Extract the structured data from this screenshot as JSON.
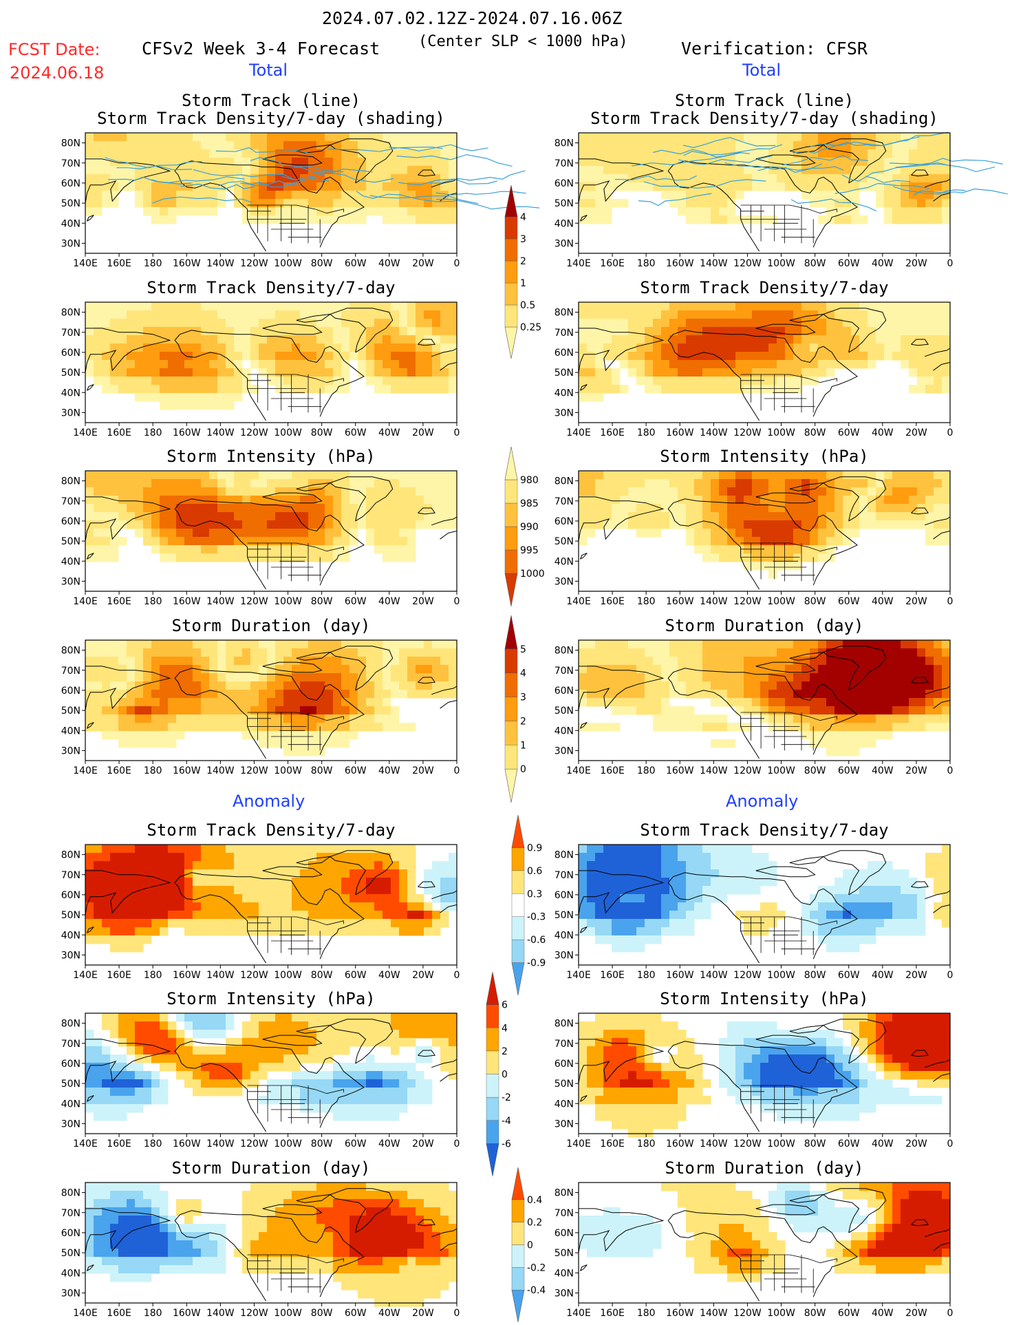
{
  "header": {
    "date_range": "2024.07.02.12Z-2024.07.16.06Z",
    "fcst_label": "FCST Date:",
    "fcst_date": "2024.06.18",
    "forecast_title": "CFSv2 Week 3-4 Forecast",
    "subtitle": "(Center SLP < 1000 hPa)",
    "verification": "Verification: CFSR"
  },
  "section_labels": {
    "total_left": "Total",
    "total_right": "Total",
    "anomaly_left": "Anomaly",
    "anomaly_right": "Anomaly"
  },
  "panels": {
    "track_line": {
      "line1": "Storm Track (line)",
      "line2": "Storm Track Density/7-day (shading)"
    },
    "density": "Storm Track Density/7-day",
    "intensity": "Storm Intensity (hPa)",
    "duration": "Storm Duration (day)"
  },
  "axes": {
    "lat_ticks": [
      "80N",
      "70N",
      "60N",
      "50N",
      "40N",
      "30N"
    ],
    "lon_ticks": [
      "140E",
      "160E",
      "180",
      "160W",
      "140W",
      "120W",
      "100W",
      "80W",
      "60W",
      "40W",
      "20W",
      "0"
    ]
  },
  "colorbars": {
    "density_total": [
      "0.25",
      "0.5",
      "1",
      "2",
      "3",
      "4"
    ],
    "intensity_total": [
      "1000",
      "995",
      "990",
      "985",
      "980"
    ],
    "duration_total": [
      "0",
      "1",
      "2",
      "3",
      "4",
      "5"
    ],
    "density_anom": [
      "-0.9",
      "-0.6",
      "-0.3",
      "0.3",
      "0.6",
      "0.9"
    ],
    "intensity_anom": [
      "-6",
      "-4",
      "-2",
      "0",
      "2",
      "4",
      "6"
    ],
    "duration_anom": [
      "-0.4",
      "-0.2",
      "0",
      "0.2",
      "0.4"
    ]
  },
  "colors": {
    "seq": [
      "#fff5a8",
      "#ffe57a",
      "#ffc23e",
      "#ff9c0f",
      "#f06d00",
      "#d93a00",
      "#a30000"
    ],
    "div_neg": [
      "#cdf3fa",
      "#96d8f5",
      "#4aa3ed",
      "#1f62d8"
    ],
    "div_pos": [
      "#ffe57a",
      "#ffa500",
      "#ff4b00",
      "#d61c00"
    ],
    "track_line": "#3aa0d8",
    "title_red": "#ff2a2a",
    "label_blue": "#1f3fff"
  }
}
